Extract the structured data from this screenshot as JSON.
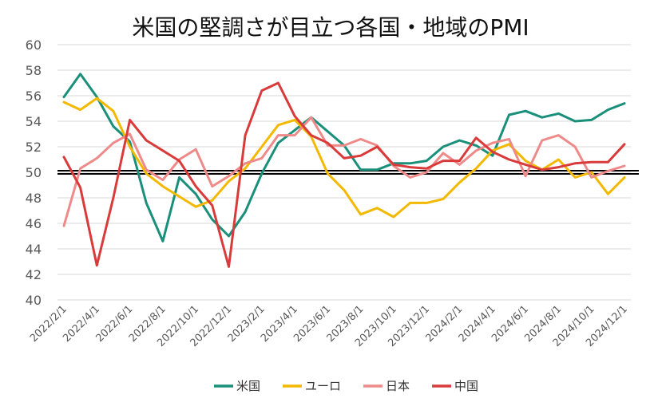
{
  "chart_data": {
    "type": "line",
    "title": "米国の堅調さが目立つ各国・地域のPMI",
    "xlabel": "",
    "ylabel": "",
    "ylim": [
      40,
      60
    ],
    "yticks": [
      40,
      42,
      44,
      46,
      48,
      50,
      52,
      54,
      56,
      58,
      60
    ],
    "grid": true,
    "legend_position": "bottom",
    "reference_line": 50,
    "x": [
      "2022/2/1",
      "2022/3/1",
      "2022/4/1",
      "2022/5/1",
      "2022/6/1",
      "2022/7/1",
      "2022/8/1",
      "2022/9/1",
      "2022/10/1",
      "2022/11/1",
      "2022/12/1",
      "2023/1/1",
      "2023/2/1",
      "2023/3/1",
      "2023/4/1",
      "2023/5/1",
      "2023/6/1",
      "2023/7/1",
      "2023/8/1",
      "2023/9/1",
      "2023/10/1",
      "2023/11/1",
      "2023/12/1",
      "2024/1/1",
      "2024/2/1",
      "2024/3/1",
      "2024/4/1",
      "2024/5/1",
      "2024/6/1",
      "2024/7/1",
      "2024/8/1",
      "2024/9/1",
      "2024/10/1",
      "2024/11/1",
      "2024/12/1"
    ],
    "xtick_labels": [
      "2022/2/1",
      "2022/4/1",
      "2022/6/1",
      "2022/8/1",
      "2022/10/1",
      "2022/12/1",
      "2023/2/1",
      "2023/4/1",
      "2023/6/1",
      "2023/8/1",
      "2023/10/1",
      "2023/12/1",
      "2024/2/1",
      "2024/4/1",
      "2024/6/1",
      "2024/8/1",
      "2024/10/1",
      "2024/12/1"
    ],
    "series": [
      {
        "name": "米国",
        "color": "#1a8f7a",
        "values": [
          55.9,
          57.7,
          55.9,
          53.6,
          52.4,
          47.6,
          44.6,
          49.6,
          48.3,
          46.3,
          45.0,
          46.9,
          49.9,
          52.3,
          53.3,
          54.3,
          53.2,
          52.1,
          50.2,
          50.2,
          50.7,
          50.7,
          50.9,
          52.0,
          52.5,
          52.1,
          51.3,
          54.5,
          54.8,
          54.3,
          54.6,
          54.0,
          54.1,
          54.9,
          55.4
        ]
      },
      {
        "name": "ユーロ",
        "color": "#f2b900",
        "values": [
          55.5,
          54.9,
          55.8,
          54.8,
          52.0,
          49.9,
          48.9,
          48.1,
          47.3,
          47.8,
          49.3,
          50.3,
          52.0,
          53.7,
          54.1,
          52.8,
          49.9,
          48.6,
          46.7,
          47.2,
          46.5,
          47.6,
          47.6,
          47.9,
          49.2,
          50.3,
          51.7,
          52.2,
          50.9,
          50.2,
          51.0,
          49.6,
          50.0,
          48.3,
          49.6
        ]
      },
      {
        "name": "日本",
        "color": "#ee8a8a",
        "values": [
          45.8,
          50.3,
          51.1,
          52.3,
          53.0,
          50.2,
          49.4,
          51.0,
          51.8,
          48.9,
          49.7,
          50.7,
          51.1,
          52.9,
          52.9,
          54.3,
          52.1,
          52.1,
          52.6,
          52.1,
          50.5,
          49.6,
          50.0,
          51.5,
          50.6,
          51.7,
          52.3,
          52.6,
          49.7,
          52.5,
          52.9,
          52.0,
          49.6,
          50.1,
          50.5
        ]
      },
      {
        "name": "中国",
        "color": "#d93a3a",
        "values": [
          51.2,
          48.8,
          42.7,
          48.0,
          54.1,
          52.5,
          51.7,
          50.9,
          48.9,
          47.4,
          42.6,
          52.9,
          56.4,
          57.0,
          54.4,
          52.9,
          52.3,
          51.1,
          51.3,
          52.0,
          50.6,
          50.4,
          50.3,
          50.9,
          50.9,
          52.7,
          51.6,
          51.0,
          50.6,
          50.2,
          50.4,
          50.7,
          50.8,
          50.8,
          52.2
        ]
      }
    ]
  }
}
